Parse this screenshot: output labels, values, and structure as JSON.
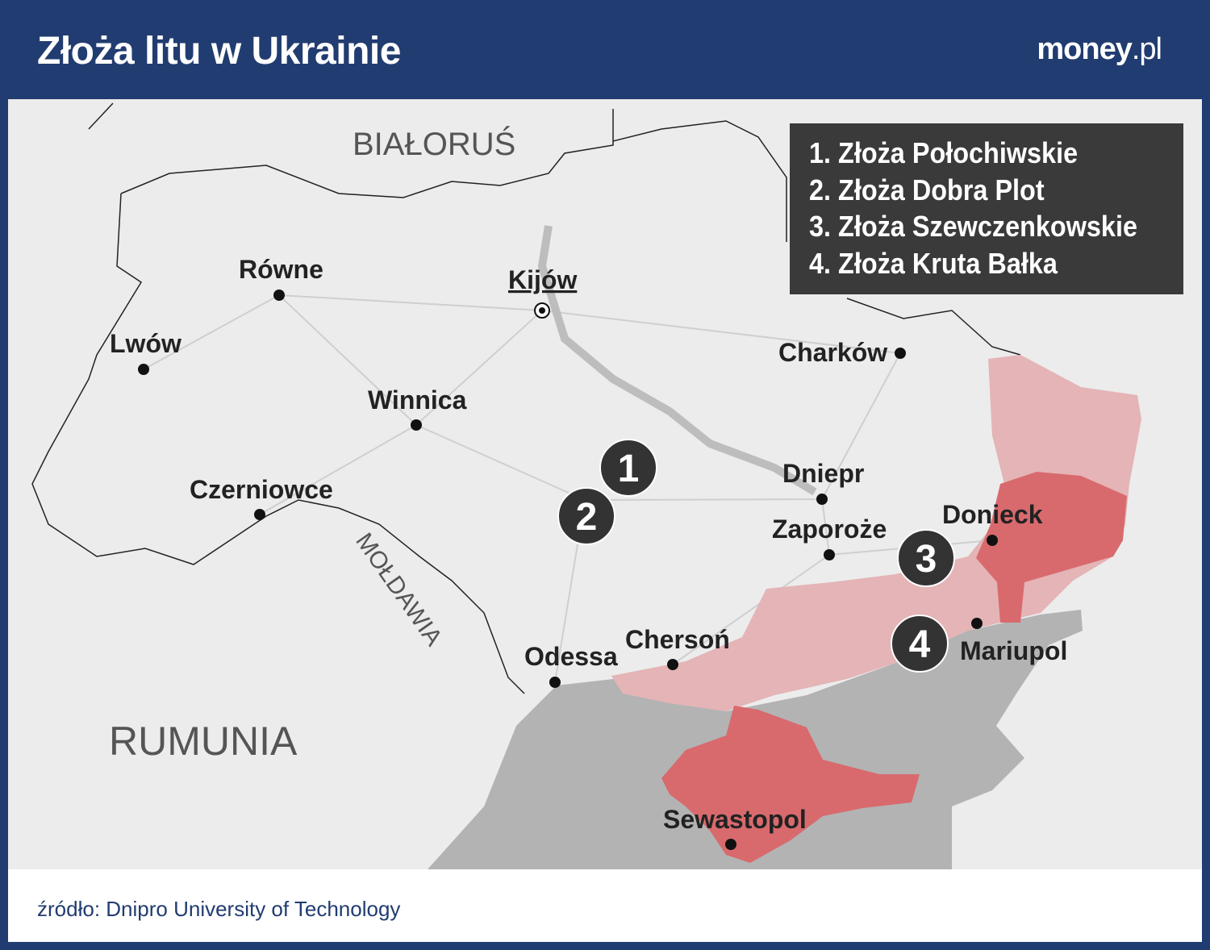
{
  "header": {
    "title": "Złoża litu w Ukrainie",
    "brand": "money",
    "brand_suffix": ".pl"
  },
  "legend": {
    "items": [
      "1. Złoża Połochiwskie",
      "2. Złoża Dobra Plot",
      "3. Złoża Szewczenkowskie",
      "4. Złoża Kruta Bałka"
    ]
  },
  "countries": {
    "belarus": "BIAŁORUŚ",
    "romania": "RUMUNIA",
    "moldova": "MOŁDAWIA"
  },
  "cities": {
    "kyiv": "Kijów",
    "rivne": "Równe",
    "lviv": "Lwów",
    "vinnytsia": "Winnica",
    "chernivtsi": "Czerniowce",
    "kharkiv": "Charków",
    "dnipro": "Dniepr",
    "zaporizhzhia": "Zaporoże",
    "donetsk": "Donieck",
    "mariupol": "Mariupol",
    "kherson": "Chersoń",
    "odesa": "Odessa",
    "sevastopol": "Sewastopol"
  },
  "markers": [
    "1",
    "2",
    "3",
    "4"
  ],
  "colors": {
    "header": "#213c70",
    "occupied_light": "#e4b4b6",
    "occupied_dark": "#d86a6e",
    "sea": "#b3b3b3",
    "marker": "#333333"
  },
  "footer": {
    "source": "źródło: Dnipro University of Technology"
  }
}
